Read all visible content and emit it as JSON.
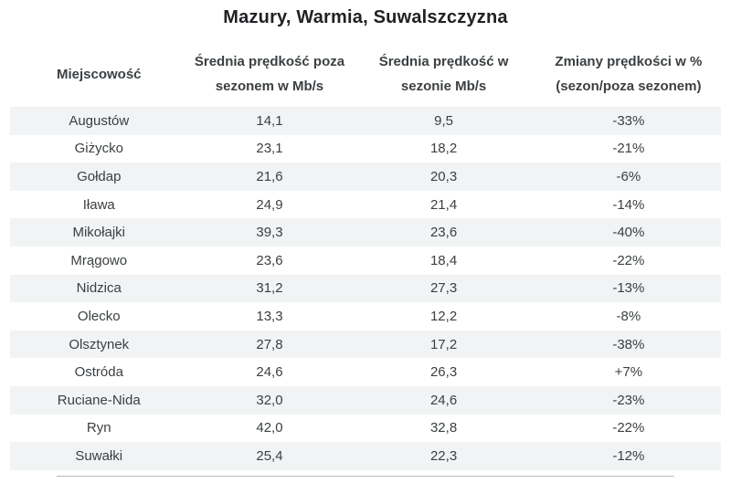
{
  "title": "Mazury, Warmia, Suwalszczyzna",
  "table": {
    "headers": [
      {
        "line1": "Miejscowość",
        "line2": ""
      },
      {
        "line1": "Średnia prędkość poza",
        "line2": "sezonem w Mb/s"
      },
      {
        "line1": "Średnia prędkość w",
        "line2": "sezonie Mb/s"
      },
      {
        "line1": "Zmiany prędkości w %",
        "line2": "(sezon/poza sezonem)"
      }
    ],
    "rows": [
      {
        "city": "Augustów",
        "off_season": "14,1",
        "in_season": "9,5",
        "change": "-33%"
      },
      {
        "city": "Giżycko",
        "off_season": "23,1",
        "in_season": "18,2",
        "change": "-21%"
      },
      {
        "city": "Gołdap",
        "off_season": "21,6",
        "in_season": "20,3",
        "change": "-6%"
      },
      {
        "city": "Iława",
        "off_season": "24,9",
        "in_season": "21,4",
        "change": "-14%"
      },
      {
        "city": "Mikołajki",
        "off_season": "39,3",
        "in_season": "23,6",
        "change": "-40%"
      },
      {
        "city": "Mrągowo",
        "off_season": "23,6",
        "in_season": "18,4",
        "change": "-22%"
      },
      {
        "city": "Nidzica",
        "off_season": "31,2",
        "in_season": "27,3",
        "change": "-13%"
      },
      {
        "city": "Olecko",
        "off_season": "13,3",
        "in_season": "12,2",
        "change": "-8%"
      },
      {
        "city": "Olsztynek",
        "off_season": "27,8",
        "in_season": "17,2",
        "change": "-38%"
      },
      {
        "city": "Ostróda",
        "off_season": "24,6",
        "in_season": "26,3",
        "change": "+7%"
      },
      {
        "city": "Ruciane-Nida",
        "off_season": "32,0",
        "in_season": "24,6",
        "change": "-23%"
      },
      {
        "city": "Ryn",
        "off_season": "42,0",
        "in_season": "32,8",
        "change": "-22%"
      },
      {
        "city": "Suwałki",
        "off_season": "25,4",
        "in_season": "22,3",
        "change": "-12%"
      }
    ]
  },
  "colors": {
    "stripe": "#f1f3f4",
    "text": "#3c4043",
    "title": "#202124",
    "background": "#ffffff"
  },
  "chart_data": {
    "type": "table",
    "title": "Mazury, Warmia, Suwalszczyzna",
    "columns": [
      "Miejscowość",
      "Średnia prędkość poza sezonem w Mb/s",
      "Średnia prędkość w sezonie Mb/s",
      "Zmiany prędkości w % (sezon/poza sezonem)"
    ],
    "rows": [
      [
        "Augustów",
        14.1,
        9.5,
        -33
      ],
      [
        "Giżycko",
        23.1,
        18.2,
        -21
      ],
      [
        "Gołdap",
        21.6,
        20.3,
        -6
      ],
      [
        "Iława",
        24.9,
        21.4,
        -14
      ],
      [
        "Mikołajki",
        39.3,
        23.6,
        -40
      ],
      [
        "Mrągowo",
        23.6,
        18.4,
        -22
      ],
      [
        "Nidzica",
        31.2,
        27.3,
        -13
      ],
      [
        "Olecko",
        13.3,
        12.2,
        -8
      ],
      [
        "Olsztynek",
        27.8,
        17.2,
        -38
      ],
      [
        "Ostróda",
        24.6,
        26.3,
        7
      ],
      [
        "Ruciane-Nida",
        32.0,
        24.6,
        -23
      ],
      [
        "Ryn",
        42.0,
        32.8,
        -22
      ],
      [
        "Suwałki",
        25.4,
        22.3,
        -12
      ]
    ]
  }
}
